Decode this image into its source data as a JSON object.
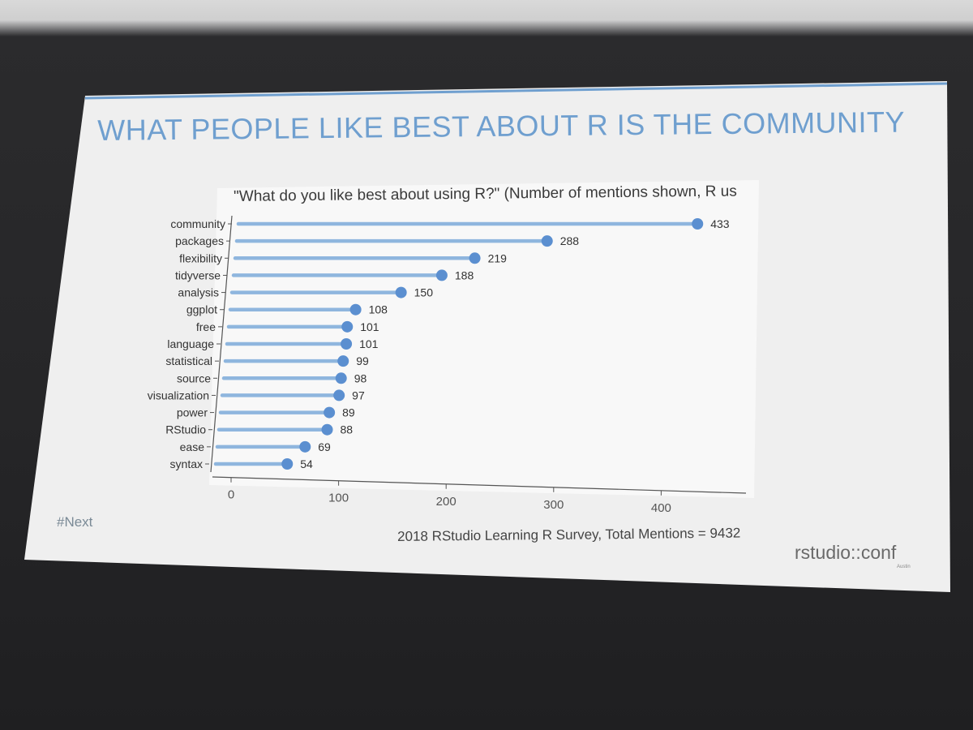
{
  "slide": {
    "title": "WHAT PEOPLE LIKE BEST ABOUT R IS THE COMMUNITY",
    "hashtag": "#Next",
    "source": "2018 RStudio Learning R Survey, Total Mentions = 9432",
    "logo": "rstudio::conf",
    "logo_sub": "Austin"
  },
  "colors": {
    "accent": "#6f9fcf",
    "lollipop": "#8fb6de",
    "point": "#5b8fd0"
  },
  "chart_data": {
    "type": "bar",
    "title": "\"What do you like best about using R?\" (Number of mentions shown, R us",
    "orientation": "horizontal-lollipop",
    "categories": [
      "community",
      "packages",
      "flexibility",
      "tidyverse",
      "analysis",
      "ggplot",
      "free",
      "language",
      "statistical",
      "source",
      "visualization",
      "power",
      "RStudio",
      "ease",
      "syntax"
    ],
    "values": [
      433,
      288,
      219,
      188,
      150,
      108,
      101,
      101,
      99,
      98,
      97,
      89,
      88,
      69,
      54
    ],
    "xlabel": "",
    "ylabel": "",
    "xticks": [
      0,
      100,
      200,
      300,
      400
    ],
    "xlim": [
      0,
      480
    ],
    "grid": false,
    "legend": "none"
  }
}
